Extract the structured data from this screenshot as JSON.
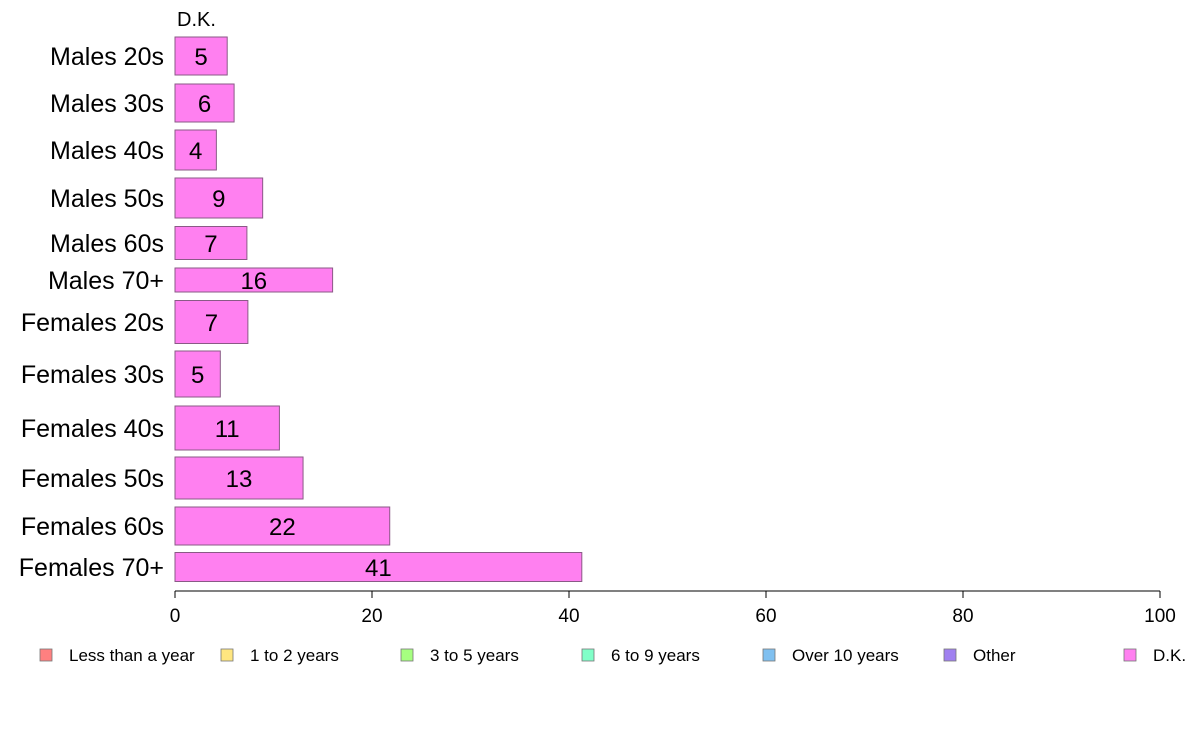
{
  "chart_data": {
    "type": "bar",
    "orientation": "horizontal",
    "stacked": true,
    "column_header": "D.K.",
    "categories": [
      "Males 20s",
      "Males 30s",
      "Males 40s",
      "Males 50s",
      "Males 60s",
      "Males 70+",
      "Females 20s",
      "Females 30s",
      "Females 40s",
      "Females 50s",
      "Females 60s",
      "Females 70+"
    ],
    "series": [
      {
        "name": "Less than a year",
        "color": "#ff8080",
        "values": [
          0,
          0,
          0,
          0,
          0,
          0,
          0,
          0,
          0,
          0,
          0,
          0
        ]
      },
      {
        "name": "1 to 2 years",
        "color": "#ffe680",
        "values": [
          0,
          0,
          0,
          0,
          0,
          0,
          0,
          0,
          0,
          0,
          0,
          0
        ]
      },
      {
        "name": "3 to 5 years",
        "color": "#a6ff80",
        "values": [
          0,
          0,
          0,
          0,
          0,
          0,
          0,
          0,
          0,
          0,
          0,
          0
        ]
      },
      {
        "name": "6 to 9 years",
        "color": "#80ffc8",
        "values": [
          0,
          0,
          0,
          0,
          0,
          0,
          0,
          0,
          0,
          0,
          0,
          0
        ]
      },
      {
        "name": "Over 10 years",
        "color": "#80c0f0",
        "values": [
          0,
          0,
          0,
          0,
          0,
          0,
          0,
          0,
          0,
          0,
          0,
          0
        ]
      },
      {
        "name": "Other",
        "color": "#a080f0",
        "values": [
          0,
          0,
          0,
          0,
          0,
          0,
          0,
          0,
          0,
          0,
          0,
          0
        ]
      },
      {
        "name": "D.K.",
        "color": "#ff80f0",
        "values": [
          5.3,
          6,
          4.2,
          8.9,
          7.3,
          16,
          7.4,
          4.6,
          10.6,
          13,
          21.8,
          41.3
        ]
      }
    ],
    "data_labels": [
      "5",
      "6",
      "4",
      "9",
      "7",
      "16",
      "7",
      "5",
      "11",
      "13",
      "22",
      "41"
    ],
    "xlim": [
      0,
      100
    ],
    "xticks": [
      0,
      20,
      40,
      60,
      80,
      100
    ],
    "xlabel": "",
    "ylabel": "",
    "grid": false,
    "legend_position": "bottom"
  }
}
